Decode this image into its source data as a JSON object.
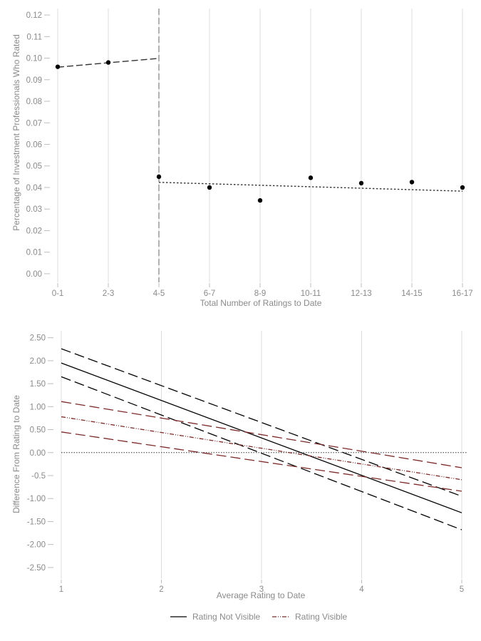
{
  "chart_data": [
    {
      "type": "scatter",
      "xlabel": "Total Number of Ratings to Date",
      "ylabel": "Percentage of Investment Professionals Who Rated",
      "categories": [
        "0-1",
        "2-3",
        "4-5",
        "6-7",
        "8-9",
        "10-11",
        "12-13",
        "14-15",
        "16-17"
      ],
      "yticks": [
        "0.00",
        "0.01",
        "0.02",
        "0.03",
        "0.04",
        "0.05",
        "0.06",
        "0.07",
        "0.08",
        "0.09",
        "0.10",
        "0.11",
        "0.12"
      ],
      "ylim": [
        -0.004,
        0.123
      ],
      "points": [
        {
          "x": "0-1",
          "y": 0.096
        },
        {
          "x": "2-3",
          "y": 0.098
        },
        {
          "x": "4-5",
          "y": 0.045
        },
        {
          "x": "6-7",
          "y": 0.04
        },
        {
          "x": "8-9",
          "y": 0.034
        },
        {
          "x": "10-11",
          "y": 0.0445
        },
        {
          "x": "12-13",
          "y": 0.042
        },
        {
          "x": "14-15",
          "y": 0.0425
        },
        {
          "x": "16-17",
          "y": 0.04
        }
      ],
      "fit_lines": [
        {
          "style": "dashed",
          "from": {
            "x": "0-1",
            "y": 0.0958
          },
          "to": {
            "x": "4-5",
            "y": 0.0999
          }
        },
        {
          "style": "dotted",
          "from": {
            "x": "4-5",
            "y": 0.0424
          },
          "to": {
            "x": "16-17",
            "y": 0.0383
          }
        }
      ],
      "cutoff": {
        "x": "4-5",
        "style": "dashed",
        "color": "#aaaaaa"
      },
      "grid": "vertical",
      "point_color": "#000000"
    },
    {
      "type": "line",
      "xlabel": "Average Rating to Date",
      "ylabel": "Difference From Rating to Date",
      "xticks": [
        "1",
        "2",
        "3",
        "4",
        "5"
      ],
      "yticks": [
        "2.50",
        "2.00",
        "1.50",
        "1.00",
        "0.50",
        "0.00",
        "-0.5",
        "-1.00",
        "-1.50",
        "-2.00",
        "-2.50"
      ],
      "xlim": [
        1,
        5
      ],
      "ylim": [
        -2.75,
        2.65
      ],
      "reference_line": {
        "y": 0,
        "style": "dotted"
      },
      "grid": "vertical",
      "series": [
        {
          "name": "Rating Not Visible",
          "color": "#000000",
          "style": "solid",
          "x": [
            1,
            5
          ],
          "y": [
            1.95,
            -1.31
          ]
        },
        {
          "color": "#000000",
          "style": "longdash",
          "x": [
            1,
            5
          ],
          "y": [
            2.26,
            -0.95
          ]
        },
        {
          "color": "#000000",
          "style": "longdash",
          "x": [
            1,
            5
          ],
          "y": [
            1.65,
            -1.68
          ]
        },
        {
          "name": "Rating Visible",
          "color": "#7b2a2a",
          "style": "dashdotdot",
          "x": [
            1,
            5
          ],
          "y": [
            0.78,
            -0.59
          ]
        },
        {
          "color": "#7b2a2a",
          "style": "longdash",
          "x": [
            1,
            5
          ],
          "y": [
            1.11,
            -0.33
          ]
        },
        {
          "color": "#7b2a2a",
          "style": "longdash",
          "x": [
            1,
            5
          ],
          "y": [
            0.45,
            -0.84
          ]
        }
      ],
      "legend": {
        "position": "bottom",
        "entries": [
          {
            "label": "Rating Not Visible",
            "color": "#000000",
            "style": "solid"
          },
          {
            "label": "Rating Visible",
            "color": "#7b2a2a",
            "style": "dashdotdot"
          }
        ]
      }
    }
  ]
}
